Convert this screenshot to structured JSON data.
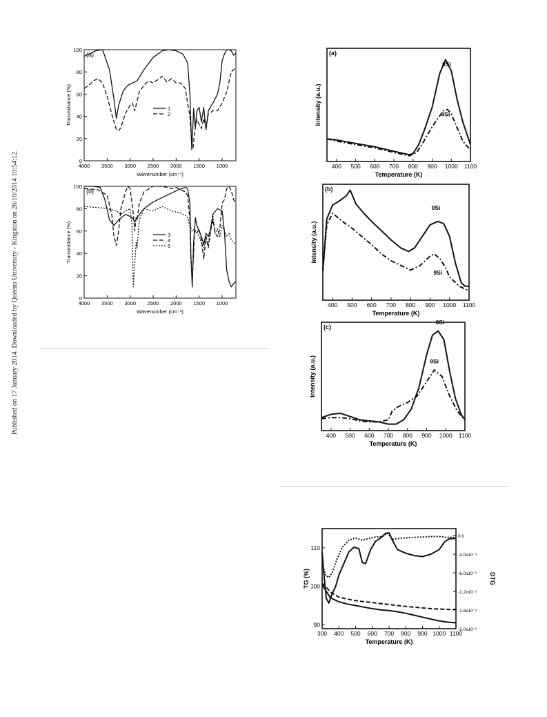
{
  "sidebar": {
    "text": "Published on 17 January 2014. Downloaded by Queens University - Kingston on 26/10/2014 10:54:12."
  },
  "chart_data": [
    {
      "id": "ftir_a",
      "type": "line",
      "panel_label": "(a)",
      "xlabel": "Wavenumber (cm⁻¹)",
      "ylabel": "Transmittance (%)",
      "xlim": [
        4000,
        700
      ],
      "ylim": [
        0,
        100
      ],
      "xticks": [
        4000,
        3500,
        3000,
        2500,
        2000,
        1500,
        1000
      ],
      "yticks": [
        0,
        20,
        40,
        60,
        80,
        100
      ],
      "legend": "center",
      "series": [
        {
          "name": "1",
          "style": "solid",
          "x": [
            4000,
            3900,
            3750,
            3600,
            3450,
            3350,
            3300,
            3250,
            3150,
            3050,
            2950,
            2850,
            2700,
            2500,
            2300,
            2150,
            2000,
            1850,
            1750,
            1700,
            1660,
            1640,
            1620,
            1600,
            1580,
            1550,
            1500,
            1450,
            1400,
            1350,
            1300,
            1200,
            1100,
            1050,
            1000,
            950,
            900,
            850,
            800,
            750,
            700
          ],
          "y": [
            94,
            96,
            99,
            100,
            82,
            55,
            38,
            50,
            63,
            68,
            70,
            72,
            82,
            93,
            99,
            100,
            99,
            96,
            88,
            60,
            10,
            25,
            47,
            38,
            30,
            45,
            48,
            35,
            48,
            28,
            45,
            52,
            60,
            70,
            90,
            96,
            100,
            100,
            99,
            95,
            97
          ]
        },
        {
          "name": "2",
          "style": "dashed",
          "x": [
            4000,
            3900,
            3800,
            3700,
            3600,
            3500,
            3400,
            3350,
            3300,
            3250,
            3200,
            3100,
            3000,
            2950,
            2900,
            2800,
            2700,
            2600,
            2500,
            2400,
            2300,
            2200,
            2100,
            2000,
            1900,
            1800,
            1750,
            1700,
            1660,
            1630,
            1600,
            1550,
            1500,
            1450,
            1400,
            1350,
            1300,
            1200,
            1100,
            1000,
            900,
            800,
            750,
            700
          ],
          "y": [
            65,
            68,
            72,
            74,
            70,
            58,
            42,
            35,
            28,
            27,
            30,
            43,
            50,
            52,
            45,
            62,
            68,
            72,
            70,
            73,
            76,
            71,
            74,
            70,
            70,
            65,
            52,
            40,
            15,
            12,
            25,
            37,
            33,
            29,
            38,
            30,
            42,
            45,
            45,
            52,
            62,
            80,
            82,
            84
          ]
        }
      ]
    },
    {
      "id": "ftir_b",
      "type": "line",
      "panel_label": "(b)",
      "xlabel": "Wavenumber (cm⁻¹)",
      "ylabel": "Transmittance (%)",
      "xlim": [
        4000,
        700
      ],
      "ylim": [
        0,
        100
      ],
      "xticks": [
        4000,
        3500,
        3000,
        2500,
        2000,
        1500,
        1000
      ],
      "yticks": [
        0,
        20,
        40,
        60,
        80,
        100
      ],
      "legend": "center",
      "series": [
        {
          "name": "3",
          "style": "solid",
          "x": [
            4000,
            3800,
            3650,
            3550,
            3450,
            3350,
            3250,
            3100,
            2950,
            2900,
            2850,
            2700,
            2500,
            2300,
            2100,
            1950,
            1800,
            1750,
            1700,
            1680,
            1650,
            1620,
            1580,
            1550,
            1500,
            1450,
            1400,
            1350,
            1300,
            1250,
            1200,
            1100,
            1000,
            950,
            900,
            850,
            800,
            750,
            700
          ],
          "y": [
            100,
            100,
            99,
            88,
            70,
            65,
            70,
            75,
            72,
            68,
            72,
            80,
            86,
            90,
            94,
            97,
            99,
            98,
            85,
            40,
            10,
            50,
            72,
            65,
            60,
            55,
            48,
            58,
            55,
            62,
            75,
            80,
            78,
            60,
            25,
            15,
            10,
            13,
            15
          ]
        },
        {
          "name": "4",
          "style": "dashed",
          "x": [
            4000,
            3700,
            3500,
            3400,
            3350,
            3300,
            3250,
            3200,
            3100,
            3050,
            3000,
            2960,
            2930,
            2900,
            2870,
            2850,
            2800,
            2700,
            2500,
            2300,
            2100,
            2000,
            1900,
            1800,
            1750,
            1700,
            1680,
            1650,
            1620,
            1600,
            1550,
            1500,
            1450,
            1400,
            1350,
            1300,
            1250,
            1200,
            1150,
            1100,
            1050,
            1000,
            950,
            900,
            850,
            800,
            750,
            700
          ],
          "y": [
            98,
            97,
            92,
            75,
            55,
            47,
            60,
            80,
            95,
            100,
            98,
            85,
            75,
            60,
            72,
            70,
            85,
            95,
            100,
            100,
            98,
            99,
            97,
            95,
            92,
            70,
            35,
            15,
            40,
            60,
            58,
            62,
            52,
            35,
            55,
            45,
            60,
            70,
            58,
            55,
            62,
            85,
            88,
            98,
            100,
            96,
            88,
            85
          ]
        },
        {
          "name": "5",
          "style": "dotted",
          "x": [
            4000,
            3700,
            3500,
            3300,
            3200,
            3100,
            3000,
            2960,
            2930,
            2900,
            2870,
            2850,
            2800,
            2700,
            2500,
            2300,
            2100,
            1900,
            1800,
            1750,
            1700,
            1650,
            1600,
            1550,
            1500,
            1450,
            1400,
            1350,
            1300,
            1250,
            1200,
            1150,
            1100,
            1050,
            1000,
            950,
            900,
            850,
            800,
            750,
            700
          ],
          "y": [
            82,
            81,
            80,
            78,
            75,
            78,
            80,
            65,
            10,
            30,
            50,
            45,
            70,
            80,
            78,
            82,
            78,
            76,
            74,
            72,
            65,
            60,
            62,
            58,
            55,
            50,
            45,
            55,
            48,
            62,
            75,
            58,
            62,
            55,
            65,
            60,
            55,
            58,
            52,
            50,
            48
          ]
        }
      ]
    },
    {
      "id": "tpd_a",
      "type": "line",
      "panel_label": "(a)",
      "xlabel": "Temperature (K)",
      "ylabel": "Intensity (a.u.)",
      "xlim": [
        350,
        1100
      ],
      "ylim": [
        0,
        100
      ],
      "xticks": [
        400,
        500,
        600,
        700,
        800,
        900,
        1000,
        1100
      ],
      "annotations": [
        "0Si",
        "9Si"
      ],
      "series": [
        {
          "name": "0Si",
          "style": "solid",
          "x": [
            350,
            400,
            500,
            600,
            700,
            780,
            800,
            830,
            860,
            900,
            940,
            970,
            1000,
            1030,
            1060,
            1100
          ],
          "y": [
            20,
            19,
            16,
            13,
            9,
            6,
            7,
            15,
            28,
            48,
            78,
            90,
            80,
            55,
            35,
            15
          ]
        },
        {
          "name": "9Si",
          "style": "dashdot",
          "x": [
            350,
            400,
            500,
            600,
            700,
            780,
            820,
            850,
            880,
            920,
            960,
            980,
            1000,
            1030,
            1060,
            1100
          ],
          "y": [
            20,
            18,
            15,
            12,
            8,
            5,
            8,
            16,
            25,
            36,
            45,
            46,
            42,
            30,
            18,
            10
          ]
        }
      ]
    },
    {
      "id": "tpd_b",
      "type": "line",
      "panel_label": "(b)",
      "xlabel": "Temperature (K)",
      "ylabel": "Intensity (a.u.)",
      "xlim": [
        350,
        1100
      ],
      "ylim": [
        0,
        100
      ],
      "xticks": [
        400,
        500,
        600,
        700,
        800,
        900,
        1000,
        1100
      ],
      "annotations": [
        "0Si",
        "9Si"
      ],
      "series": [
        {
          "name": "0Si",
          "style": "solid",
          "x": [
            350,
            370,
            400,
            430,
            470,
            490,
            520,
            560,
            600,
            650,
            700,
            750,
            790,
            820,
            860,
            900,
            940,
            970,
            1000,
            1030,
            1060,
            1080,
            1100
          ],
          "y": [
            25,
            70,
            82,
            85,
            90,
            95,
            83,
            75,
            68,
            60,
            52,
            45,
            42,
            45,
            55,
            65,
            68,
            66,
            55,
            32,
            15,
            12,
            12
          ]
        },
        {
          "name": "9Si",
          "style": "dashdot",
          "x": [
            350,
            370,
            400,
            450,
            500,
            550,
            600,
            650,
            700,
            750,
            800,
            850,
            900,
            920,
            950,
            980,
            1000,
            1050,
            1100
          ],
          "y": [
            25,
            65,
            75,
            68,
            62,
            55,
            48,
            40,
            34,
            30,
            26,
            30,
            38,
            40,
            36,
            28,
            20,
            12,
            8
          ]
        }
      ]
    },
    {
      "id": "tpd_c",
      "type": "line",
      "panel_label": "(c)",
      "xlabel": "Temperature (K)",
      "ylabel": "Intensity (a.u.)",
      "xlim": [
        350,
        1100
      ],
      "ylim": [
        0,
        100
      ],
      "xticks": [
        400,
        500,
        600,
        700,
        800,
        900,
        1000,
        1100
      ],
      "annotations": [
        "0Si",
        "9Si"
      ],
      "series": [
        {
          "name": "0Si",
          "style": "solid",
          "x": [
            350,
            400,
            450,
            500,
            550,
            600,
            650,
            700,
            740,
            780,
            820,
            860,
            900,
            930,
            960,
            990,
            1020,
            1050,
            1080,
            1100
          ],
          "y": [
            12,
            15,
            16,
            13,
            10,
            9,
            8,
            6,
            6,
            10,
            20,
            40,
            70,
            88,
            92,
            84,
            55,
            30,
            15,
            10
          ]
        },
        {
          "name": "9Si",
          "style": "dashdot",
          "x": [
            350,
            400,
            450,
            500,
            550,
            600,
            650,
            700,
            720,
            750,
            800,
            850,
            900,
            940,
            980,
            1020,
            1060,
            1100
          ],
          "y": [
            11,
            12,
            12,
            11,
            9,
            8,
            8,
            10,
            18,
            22,
            26,
            32,
            45,
            56,
            50,
            32,
            18,
            10
          ]
        }
      ]
    },
    {
      "id": "tg_dtg",
      "type": "line",
      "xlabel": "Temperature (K)",
      "ylabel": "TG (%)",
      "ylabel_right": "DTG",
      "xlim": [
        300,
        1100
      ],
      "ylim": [
        89,
        115
      ],
      "ylim_right": [
        -0.02,
        0.0015
      ],
      "xticks": [
        300,
        400,
        500,
        600,
        700,
        800,
        900,
        1000,
        1100
      ],
      "yticks": [
        90,
        100,
        110
      ],
      "yticks_right": [
        0.0,
        -0.004,
        -0.008,
        -0.012,
        -0.016,
        -0.02
      ],
      "yticks_right_labels": [
        "0.0",
        "-4.0x10⁻³",
        "-8.0x10⁻³",
        "-1.2x10⁻²",
        "-1.6x10⁻²",
        "-2.0x10⁻²"
      ],
      "series": [
        {
          "name": "TG solid",
          "style": "solid",
          "axis": "left",
          "x": [
            300,
            320,
            350,
            400,
            450,
            500,
            550,
            600,
            650,
            700,
            750,
            800,
            850,
            900,
            950,
            1000,
            1050,
            1100
          ],
          "y": [
            100.5,
            99,
            97,
            96,
            95.4,
            95,
            94.6,
            94.2,
            93.9,
            93.7,
            93.4,
            93,
            92.5,
            92,
            91.5,
            91,
            90.7,
            90.5
          ]
        },
        {
          "name": "TG dashed",
          "style": "dashed",
          "axis": "left",
          "x": [
            300,
            320,
            350,
            400,
            450,
            500,
            550,
            600,
            650,
            700,
            750,
            800,
            850,
            900,
            950,
            1000,
            1050,
            1100
          ],
          "y": [
            100.8,
            100,
            98.5,
            97.2,
            96.7,
            96.3,
            96,
            95.8,
            95.5,
            95.3,
            95,
            94.8,
            94.6,
            94.4,
            94.2,
            94.1,
            94,
            94
          ]
        },
        {
          "name": "DTG solid",
          "style": "solid",
          "axis": "right",
          "x": [
            300,
            310,
            325,
            340,
            360,
            380,
            400,
            430,
            460,
            490,
            520,
            540,
            560,
            590,
            620,
            650,
            680,
            700,
            720,
            750,
            800,
            850,
            900,
            950,
            1000,
            1030,
            1060,
            1100
          ],
          "y": [
            -0.0035,
            -0.008,
            -0.0135,
            -0.0145,
            -0.0125,
            -0.011,
            -0.0085,
            -0.006,
            -0.0035,
            -0.0025,
            -0.0028,
            -0.0058,
            -0.006,
            -0.003,
            -0.0012,
            -0.0005,
            0.0005,
            0.0006,
            -0.001,
            -0.003,
            -0.0038,
            -0.0043,
            -0.0045,
            -0.004,
            -0.003,
            -0.0014,
            -0.0007,
            -0.0006
          ]
        },
        {
          "name": "DTG dotted",
          "style": "dotted",
          "axis": "right",
          "x": [
            300,
            320,
            340,
            360,
            390,
            420,
            460,
            500,
            540,
            580,
            620,
            660,
            690,
            720,
            760,
            800,
            850,
            900,
            950,
            1000,
            1050,
            1100
          ],
          "y": [
            -0.006,
            -0.0085,
            -0.009,
            -0.008,
            -0.005,
            -0.0025,
            -0.001,
            -0.0005,
            -0.001,
            -0.0006,
            -0.0003,
            -0.0002,
            0.0005,
            -0.0008,
            -0.0006,
            -0.0005,
            -0.0004,
            -0.0003,
            -0.0002,
            -0.0002,
            -0.0004,
            -0.0004
          ]
        }
      ]
    }
  ]
}
